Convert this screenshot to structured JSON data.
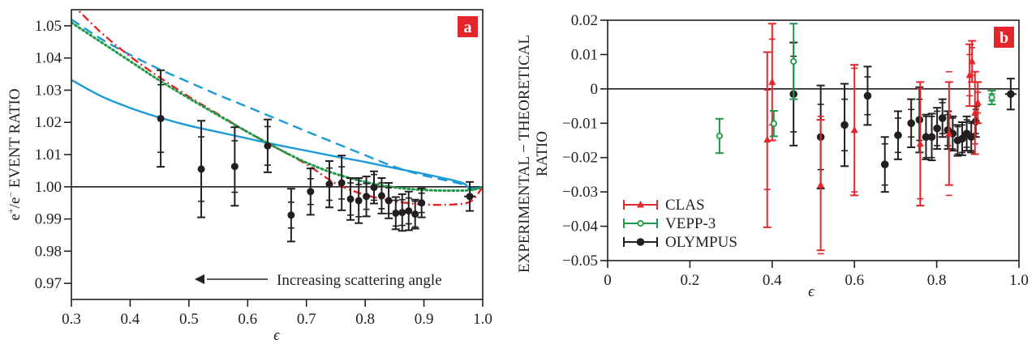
{
  "chart_data": [
    {
      "panel": "a",
      "type": "line",
      "title": "",
      "xlabel": "ϵ",
      "ylabel": "e⁺/e⁻ EVENT RATIO",
      "xlim": [
        0.3,
        1.0
      ],
      "ylim": [
        0.965,
        1.055
      ],
      "xticks": [
        "0.3",
        "0.4",
        "0.5",
        "0.6",
        "0.7",
        "0.8",
        "0.9",
        "1.0"
      ],
      "xtick_values": [
        0.3,
        0.4,
        0.5,
        0.6,
        0.7,
        0.8,
        0.9,
        1.0
      ],
      "yticks": [
        "0.97",
        "0.98",
        "0.99",
        "1.00",
        "1.01",
        "1.02",
        "1.03",
        "1.04",
        "1.05"
      ],
      "ytick_values": [
        0.97,
        0.98,
        0.99,
        1.0,
        1.01,
        1.02,
        1.03,
        1.04,
        1.05
      ],
      "reference_line": 1.0,
      "badge": "a",
      "annotation": "Increasing scattering angle",
      "annotation_arrow": "left",
      "colors": {
        "blue": "#1a9ad6",
        "red": "#e3262b",
        "green": "#1f9a48",
        "black": "#231f20",
        "badge": "#e3262b"
      },
      "series": [
        {
          "name": "theory-blue-solid",
          "style": "solid",
          "color": "#1a9ad6",
          "x": [
            0.3,
            0.35,
            0.4,
            0.45,
            0.5,
            0.55,
            0.6,
            0.65,
            0.7,
            0.75,
            0.8,
            0.85,
            0.9,
            0.95,
            0.97,
            0.98,
            1.0
          ],
          "y": [
            1.0332,
            1.0282,
            1.0245,
            1.0215,
            1.019,
            1.017,
            1.015,
            1.013,
            1.0112,
            1.0094,
            1.0077,
            1.0058,
            1.004,
            1.002,
            1.0008,
            0.999,
            1.0
          ]
        },
        {
          "name": "theory-blue-dashed",
          "style": "dashed",
          "color": "#1a9ad6",
          "x": [
            0.3,
            0.35,
            0.4,
            0.45,
            0.5,
            0.55,
            0.6,
            0.65,
            0.7,
            0.75,
            0.8,
            0.85,
            0.9,
            0.95,
            0.97,
            0.98,
            1.0
          ],
          "y": [
            1.052,
            1.046,
            1.041,
            1.0365,
            1.0325,
            1.0285,
            1.0248,
            1.021,
            1.0172,
            1.0135,
            1.0098,
            1.0062,
            1.0035,
            1.0015,
            1.0005,
            0.9995,
            1.0
          ]
        },
        {
          "name": "theory-red-dashdot",
          "style": "dashdot",
          "color": "#e3262b",
          "x": [
            0.3,
            0.35,
            0.4,
            0.45,
            0.5,
            0.55,
            0.6,
            0.65,
            0.7,
            0.75,
            0.8,
            0.85,
            0.9,
            0.95,
            0.98,
            1.0
          ],
          "y": [
            1.057,
            1.048,
            1.0405,
            1.034,
            1.028,
            1.0225,
            1.017,
            1.012,
            1.007,
            1.001,
            0.9975,
            0.9955,
            0.9945,
            0.9945,
            0.9955,
            1.0
          ]
        },
        {
          "name": "theory-green-dotted",
          "style": "dotted",
          "color": "#1f9a48",
          "x": [
            0.3,
            0.35,
            0.4,
            0.45,
            0.5,
            0.55,
            0.6,
            0.65,
            0.7,
            0.75,
            0.8,
            0.85,
            0.9,
            0.95,
            0.98,
            1.0
          ],
          "y": [
            1.051,
            1.045,
            1.039,
            1.033,
            1.0275,
            1.0222,
            1.017,
            1.012,
            1.0075,
            1.004,
            1.0015,
            0.9998,
            0.999,
            0.9988,
            0.999,
            1.0
          ]
        },
        {
          "name": "OLYMPUS",
          "style": "points",
          "color": "#231f20",
          "x": [
            0.452,
            0.521,
            0.578,
            0.634,
            0.674,
            0.707,
            0.739,
            0.76,
            0.775,
            0.789,
            0.802,
            0.815,
            0.828,
            0.84,
            0.852,
            0.863,
            0.874,
            0.885,
            0.896,
            0.978
          ],
          "y": [
            1.0212,
            1.0055,
            1.0063,
            1.0127,
            0.9912,
            0.9985,
            1.0008,
            1.0012,
            0.9962,
            0.9957,
            0.997,
            0.9998,
            0.9972,
            0.9957,
            0.9918,
            0.992,
            0.9925,
            0.9915,
            0.995,
            0.997
          ],
          "err_inner": [
            0.0105,
            0.01,
            0.008,
            0.006,
            0.004,
            0.004,
            0.005,
            0.005,
            0.005,
            0.005,
            0.004,
            0.004,
            0.004,
            0.004,
            0.004,
            0.004,
            0.004,
            0.004,
            0.003,
            0.0002
          ],
          "err_outer": [
            0.015,
            0.015,
            0.0122,
            0.0082,
            0.0082,
            0.0072,
            0.0072,
            0.0085,
            0.0065,
            0.007,
            0.0062,
            0.005,
            0.0055,
            0.0055,
            0.005,
            0.0057,
            0.006,
            0.0045,
            0.0045,
            0.0045
          ]
        }
      ]
    },
    {
      "panel": "b",
      "type": "scatter",
      "title": "",
      "xlabel": "ϵ",
      "ylabel_line1": "EXPERIMENTAL − THEORETICAL",
      "ylabel_line2": "RATIO",
      "xlim": [
        0.0,
        1.0
      ],
      "ylim": [
        -0.05,
        0.02
      ],
      "xticks": [
        "0",
        "0.2",
        "0.4",
        "0.6",
        "0.8",
        "1.0"
      ],
      "xtick_values": [
        0.0,
        0.2,
        0.4,
        0.6,
        0.8,
        1.0
      ],
      "yticks": [
        "−0.05",
        "−0.04",
        "−0.03",
        "−0.02",
        "−0.01",
        "0",
        "0.01",
        "0.02"
      ],
      "ytick_values": [
        -0.05,
        -0.04,
        -0.03,
        -0.02,
        -0.01,
        0.0,
        0.01,
        0.02
      ],
      "reference_line": 0.0,
      "badge": "b",
      "legend_position": "lower-left",
      "legend": [
        "CLAS",
        "VEPP-3",
        "OLYMPUS"
      ],
      "series": [
        {
          "name": "CLAS",
          "marker": "triangle",
          "color": "#e3262b",
          "x": [
            0.388,
            0.4,
            0.518,
            0.6,
            0.76,
            0.83,
            0.88,
            0.886,
            0.893,
            0.9
          ],
          "y": [
            -0.0148,
            0.002,
            -0.028,
            -0.012,
            -0.016,
            -0.013,
            0.004,
            0.008,
            -0.007,
            -0.004
          ],
          "err_inner": [
            0.0145,
            0.0125,
            0.02,
            0.018,
            0.016,
            0.018,
            0.006,
            0.004,
            0.009,
            0.003
          ],
          "err_outer": [
            0.0255,
            0.017,
            0.019,
            0.019,
            0.018,
            0.015,
            0.009,
            0.006,
            0.012,
            0.006
          ]
        },
        {
          "name": "VEPP-3",
          "marker": "open-circle",
          "color": "#1f9a48",
          "x": [
            0.272,
            0.404,
            0.452,
            0.934
          ],
          "y": [
            -0.0137,
            -0.0101,
            0.008,
            -0.0025
          ],
          "err_inner": [
            0.005,
            0.0037,
            0.011,
            0.001
          ],
          "err_outer": [
            0.005,
            0.0037,
            0.011,
            0.002
          ]
        },
        {
          "name": "OLYMPUS",
          "marker": "filled-circle",
          "color": "#231f20",
          "x": [
            0.452,
            0.518,
            0.576,
            0.632,
            0.674,
            0.706,
            0.738,
            0.758,
            0.774,
            0.788,
            0.801,
            0.814,
            0.827,
            0.839,
            0.851,
            0.862,
            0.873,
            0.884,
            0.895,
            0.98
          ],
          "y": [
            -0.0015,
            -0.014,
            -0.0105,
            -0.002,
            -0.022,
            -0.0135,
            -0.01,
            -0.009,
            -0.014,
            -0.014,
            -0.0115,
            -0.0085,
            -0.012,
            -0.013,
            -0.015,
            -0.0145,
            -0.013,
            -0.014,
            -0.0095,
            -0.0015
          ],
          "err_inner": [
            0.011,
            0.0095,
            0.0075,
            0.0055,
            0.006,
            0.005,
            0.004,
            0.006,
            0.006,
            0.006,
            0.005,
            0.0045,
            0.0045,
            0.0045,
            0.004,
            0.004,
            0.004,
            0.004,
            0.0035,
            0.0002
          ],
          "err_outer": [
            0.015,
            0.015,
            0.012,
            0.0085,
            0.008,
            0.007,
            0.007,
            0.0095,
            0.0065,
            0.0068,
            0.006,
            0.0055,
            0.0055,
            0.005,
            0.0045,
            0.0048,
            0.005,
            0.0045,
            0.0045,
            0.0045
          ]
        }
      ]
    }
  ]
}
